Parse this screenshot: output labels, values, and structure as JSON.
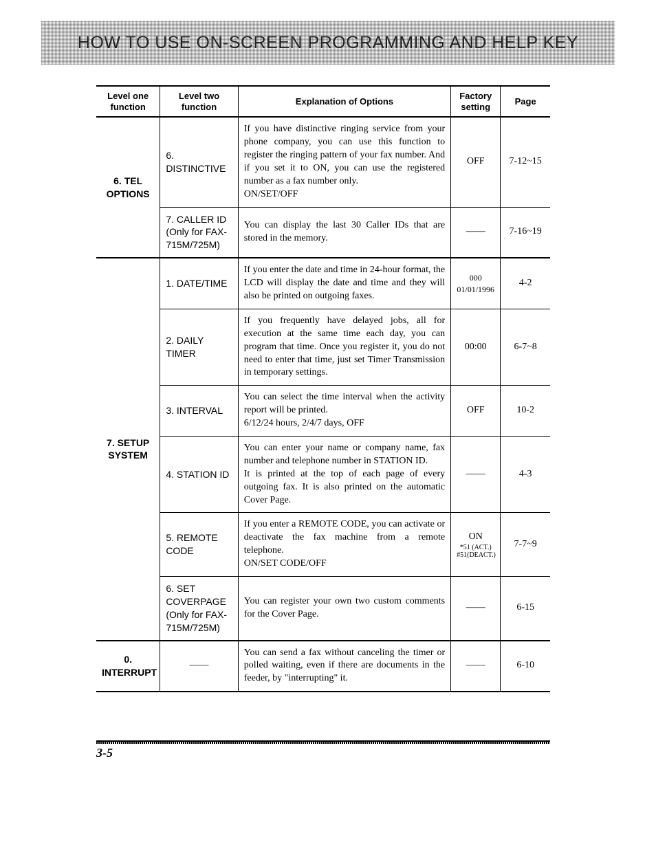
{
  "banner_title": "HOW TO USE ON-SCREEN PROGRAMMING AND HELP KEY",
  "headers": {
    "l1": "Level one function",
    "l2": "Level two function",
    "expl": "Explanation of Options",
    "fact": "Factory setting",
    "pg": "Page"
  },
  "groups": [
    {
      "l1": "6. TEL OPTIONS",
      "rows": [
        {
          "l2": "6. DISTINCTIVE",
          "expl": "If you have distinctive ringing service from your phone company, you can use this function to register the ringing pattern of your fax number. And if you set it to ON, you can use the registered number as a fax number only.\nON/SET/OFF",
          "fact": "OFF",
          "pg": "7-12~15"
        },
        {
          "l2": "7. CALLER ID (Only for FAX-715M/725M)",
          "expl": "You can display the last 30 Caller IDs that are stored in the memory.",
          "fact": "——",
          "pg": "7-16~19"
        }
      ]
    },
    {
      "l1": "7. SETUP SYSTEM",
      "rows": [
        {
          "l2": "1. DATE/TIME",
          "expl": "If you enter the date and time in 24-hour format, the LCD will display the date and time and they will also be printed on outgoing faxes.",
          "fact": "000\n01/01/1996",
          "pg": "4-2"
        },
        {
          "l2": "2. DAILY TIMER",
          "expl": "If you frequently have delayed jobs, all for execution at the same time each day, you can program that time. Once you register it, you do not need to enter that time, just set Timer Transmission in temporary settings.",
          "fact": "00:00",
          "pg": "6-7~8"
        },
        {
          "l2": "3. INTERVAL",
          "expl": "You can select the time interval when the activity report will be printed.\n6/12/24 hours, 2/4/7 days, OFF",
          "fact": "OFF",
          "pg": "10-2"
        },
        {
          "l2": "4. STATION ID",
          "expl": "You can enter your name or company name, fax number and telephone number in STATION ID.\nIt is printed at the top of each page of every outgoing fax. It is also printed on the automatic Cover Page.",
          "fact": "——",
          "pg": "4-3"
        },
        {
          "l2": "5. REMOTE CODE",
          "expl": "If you enter a REMOTE CODE, you can activate or deactivate the fax machine from a remote telephone.\nON/SET CODE/OFF",
          "fact": "ON",
          "fact_sub": [
            "*51 (ACT.)",
            "#51(DEACT.)"
          ],
          "pg": "7-7~9"
        },
        {
          "l2": "6. SET COVERPAGE (Only for FAX-715M/725M)",
          "expl": "You can register your own two custom comments for the Cover Page.",
          "fact": "——",
          "pg": "6-15"
        }
      ]
    },
    {
      "l1": "0. INTERRUPT",
      "rows": [
        {
          "l2": "——",
          "l2_is_dash": true,
          "expl": "You can send a fax without canceling the timer or polled waiting, even if there are documents in the feeder, by \"interrupting\" it.",
          "fact": "——",
          "pg": "6-10"
        }
      ]
    }
  ],
  "page_number": "3-5"
}
